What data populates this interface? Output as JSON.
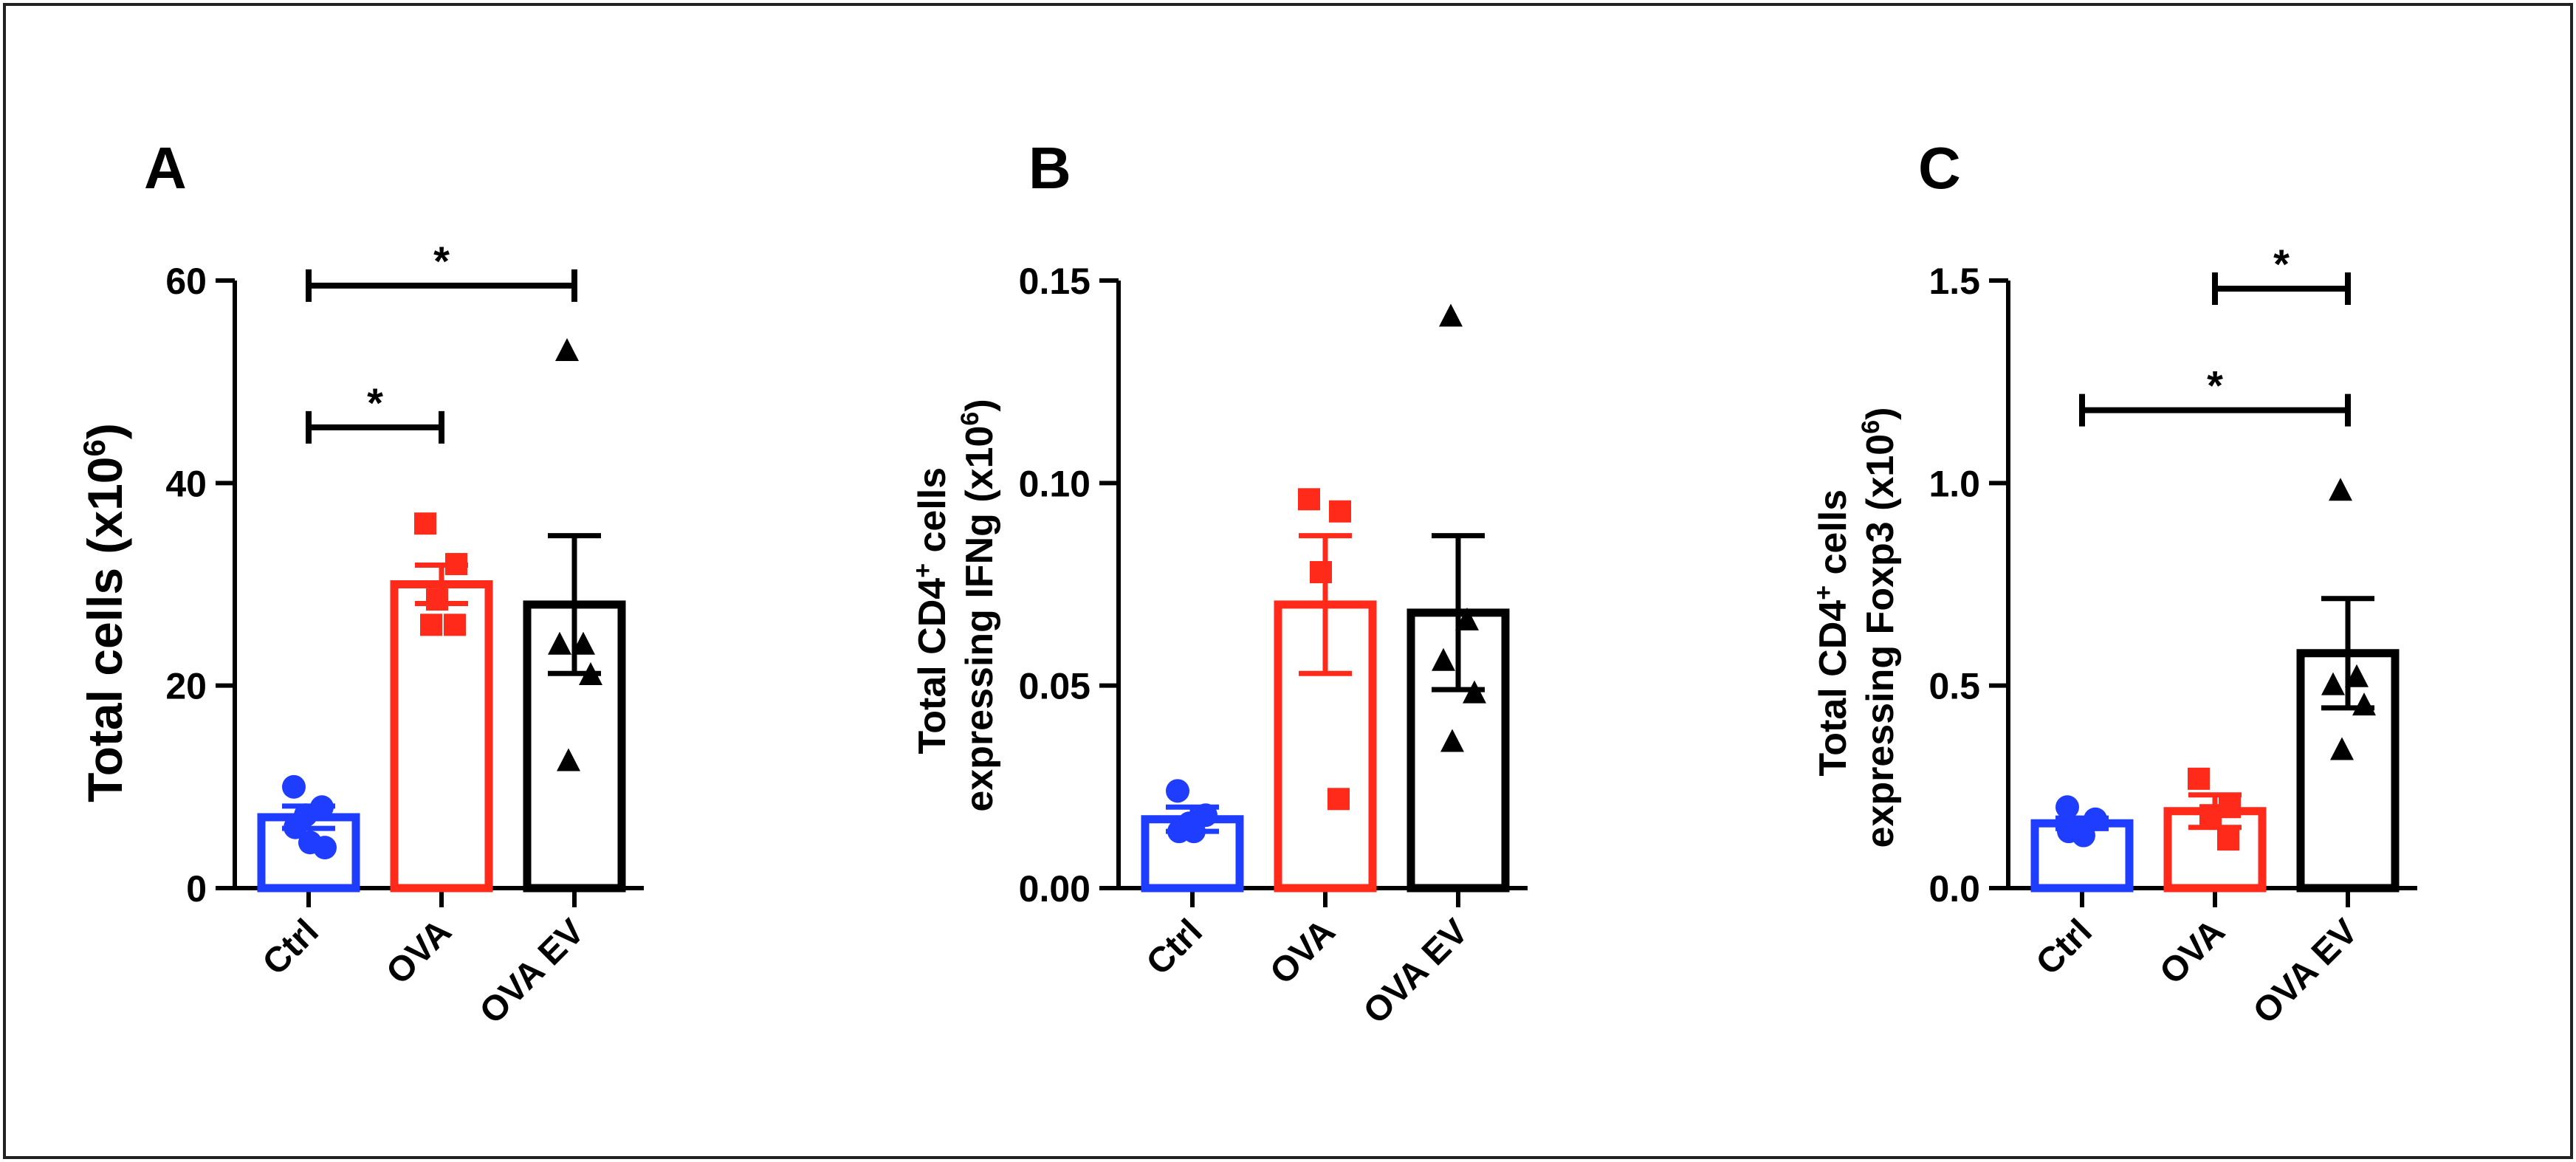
{
  "colors": {
    "ctrl": "#1f3dff",
    "ova": "#ff2a1a",
    "ova_ev": "#000000",
    "axis": "#000000"
  },
  "chart_data": [
    {
      "type": "bar",
      "panel_label": "A",
      "ylabel_main": "Total cells (x10",
      "ylabel_sup": "6",
      "ylabel_tail": ")",
      "ylim": [
        0,
        60
      ],
      "yticks": [
        "0",
        "20",
        "40",
        "60"
      ],
      "ytick_values": [
        0,
        20,
        40,
        60
      ],
      "categories": [
        "Ctrl",
        "OVA",
        "OVA EV"
      ],
      "values": [
        7,
        30,
        28
      ],
      "sem": [
        1.1,
        1.9,
        6.8
      ],
      "points": [
        [
          10,
          8,
          7.2,
          6,
          4.5,
          4
        ],
        [
          36,
          32,
          28.5,
          26,
          26
        ],
        [
          53,
          24,
          24,
          21,
          12.5
        ]
      ],
      "markers": [
        "circle",
        "square",
        "triangle"
      ],
      "significance": [
        {
          "from": 0,
          "to": 1,
          "y": 45.5,
          "label": "*"
        },
        {
          "from": 0,
          "to": 2,
          "y": 59.5,
          "label": "*"
        }
      ]
    },
    {
      "type": "bar",
      "panel_label": "B",
      "ylabel_line1": "Total CD4",
      "ylabel_line1_sup": "+",
      "ylabel_line1_tail": " cells",
      "ylabel_line2": "expressing IFNg (x10",
      "ylabel_line2_sup": "6",
      "ylabel_line2_tail": ")",
      "ylim": [
        0,
        0.15
      ],
      "yticks": [
        "0.00",
        "0.05",
        "0.10",
        "0.15"
      ],
      "ytick_values": [
        0,
        0.05,
        0.1,
        0.15
      ],
      "categories": [
        "Ctrl",
        "OVA",
        "OVA EV"
      ],
      "values": [
        0.017,
        0.07,
        0.068
      ],
      "sem": [
        0.003,
        0.017,
        0.019
      ],
      "points": [
        [
          0.024,
          0.018,
          0.016,
          0.014,
          0.014
        ],
        [
          0.096,
          0.093,
          0.078,
          0.022
        ],
        [
          0.141,
          0.066,
          0.056,
          0.048,
          0.036
        ]
      ],
      "markers": [
        "circle",
        "square",
        "triangle"
      ],
      "significance": []
    },
    {
      "type": "bar",
      "panel_label": "C",
      "ylabel_line1": "Total CD4",
      "ylabel_line1_sup": "+",
      "ylabel_line1_tail": " cells",
      "ylabel_line2": "expressing Foxp3 (x10",
      "ylabel_line2_sup": "6",
      "ylabel_line2_tail": ")",
      "ylim": [
        0,
        1.5
      ],
      "yticks": [
        "0.0",
        "0.5",
        "1.0",
        "1.5"
      ],
      "ytick_values": [
        0,
        0.5,
        1.0,
        1.5
      ],
      "categories": [
        "Ctrl",
        "OVA",
        "OVA EV"
      ],
      "values": [
        0.16,
        0.19,
        0.58
      ],
      "sem": [
        0.013,
        0.04,
        0.135
      ],
      "points": [
        [
          0.2,
          0.17,
          0.15,
          0.14,
          0.13
        ],
        [
          0.27,
          0.2,
          0.18,
          0.12
        ],
        [
          0.98,
          0.52,
          0.5,
          0.45,
          0.34
        ]
      ],
      "markers": [
        "circle",
        "square",
        "triangle"
      ],
      "significance": [
        {
          "from": 1,
          "to": 2,
          "y": 1.48,
          "label": "*"
        },
        {
          "from": 0,
          "to": 2,
          "y": 1.18,
          "label": "*"
        }
      ]
    }
  ]
}
